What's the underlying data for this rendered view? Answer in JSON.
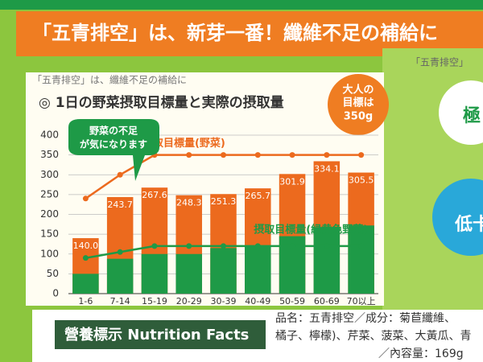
{
  "banner": {
    "text": "「五青排空」は、新芽一番！纖維不足の補給に"
  },
  "side": {
    "brand": "「五青排空」",
    "badge1": "極",
    "badge2": "低卡"
  },
  "chart_data": {
    "type": "bar",
    "subtitle": "「五青排空」は、纖維不足の補給に",
    "title": "◎ 1日の野菜摂取目標量と実際の摂取量",
    "callout": [
      "大人の",
      "目標は",
      "350g"
    ],
    "bubble": [
      "野菜の不足",
      "が気になります"
    ],
    "categories": [
      "1-6",
      "7-14",
      "15-19",
      "20-29",
      "30-39",
      "40-49",
      "50-59",
      "60-69",
      "70以上"
    ],
    "ylim": [
      0,
      400
    ],
    "yticks": [
      0,
      50,
      100,
      150,
      200,
      250,
      300,
      350,
      400
    ],
    "series": [
      {
        "type": "bar",
        "color": "#ec6a1e",
        "values": [
          140.0,
          243.7,
          267.6,
          248.3,
          251.3,
          265.7,
          301.9,
          334.1,
          305.5
        ],
        "value_labels": [
          "140.0",
          "243.7",
          "267.6",
          "248.3",
          "251.3",
          "265.7",
          "301.9",
          "334.1",
          "305.5"
        ]
      },
      {
        "type": "bar",
        "color": "#1e9a47",
        "values": [
          50,
          88,
          100,
          100,
          115,
          118,
          145,
          168,
          172
        ]
      },
      {
        "type": "line",
        "name": "摂取目標量(野菜)",
        "color": "#ec6a1e",
        "values": [
          240,
          300,
          350,
          350,
          350,
          350,
          350,
          350,
          350
        ]
      },
      {
        "type": "line",
        "name": "摂取目標量(緑黄色野菜)",
        "color": "#1e9a47",
        "values": [
          90,
          105,
          120,
          120,
          120,
          120,
          120,
          120,
          120
        ]
      }
    ]
  },
  "footer": {
    "nutrition": "營養標示 Nutrition Facts",
    "lines": [
      "品名：五青排空／成分：菊苣纖維、",
      "橘子、檸檬)、芹菜、菠菜、大黃瓜、青",
      "／內容量：169g"
    ]
  }
}
